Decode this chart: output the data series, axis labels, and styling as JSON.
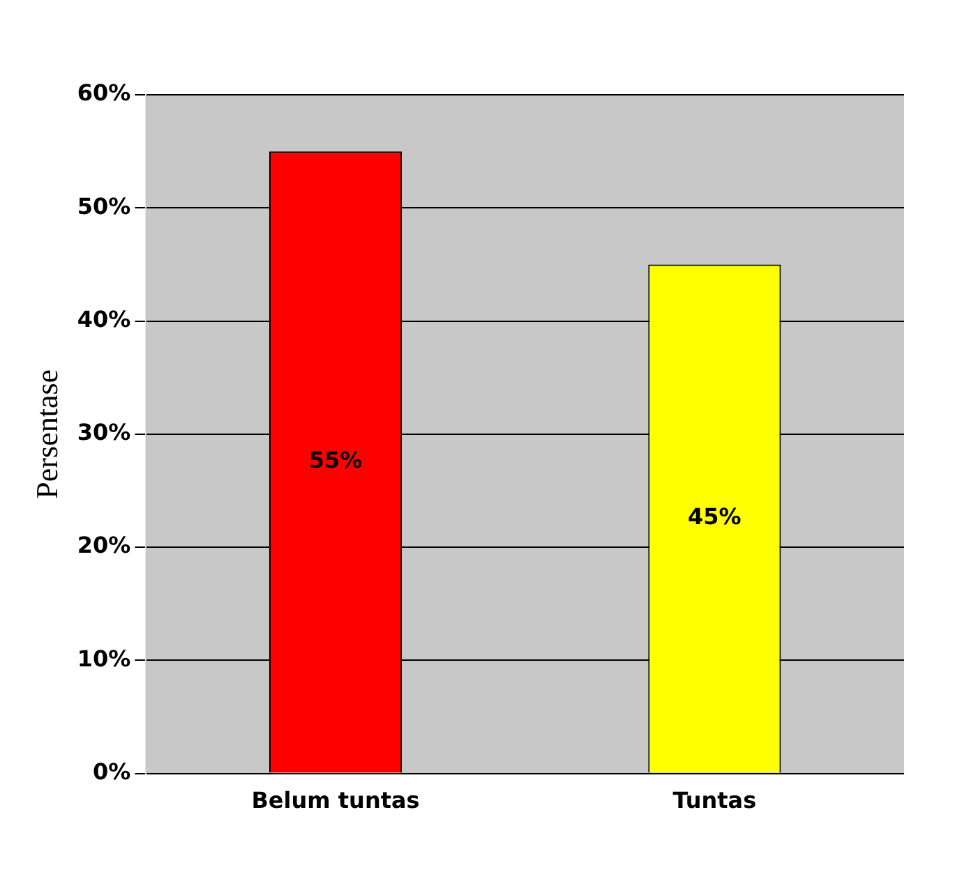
{
  "chart_data": {
    "type": "bar",
    "ylabel": "Persentase",
    "categories": [
      "Belum tuntas",
      "Tuntas"
    ],
    "values": [
      55,
      45
    ],
    "colors": [
      "#ff0000",
      "#ffff00"
    ],
    "value_labels": [
      "55%",
      "45%"
    ],
    "ylim": [
      0,
      60
    ],
    "yticks": [
      {
        "value": 0,
        "label": "0%"
      },
      {
        "value": 10,
        "label": "10%"
      },
      {
        "value": 20,
        "label": "20%"
      },
      {
        "value": 30,
        "label": "30%"
      },
      {
        "value": 40,
        "label": "40%"
      },
      {
        "value": 50,
        "label": "50%"
      },
      {
        "value": 60,
        "label": "60%"
      }
    ],
    "grid": "y",
    "legend": false
  }
}
